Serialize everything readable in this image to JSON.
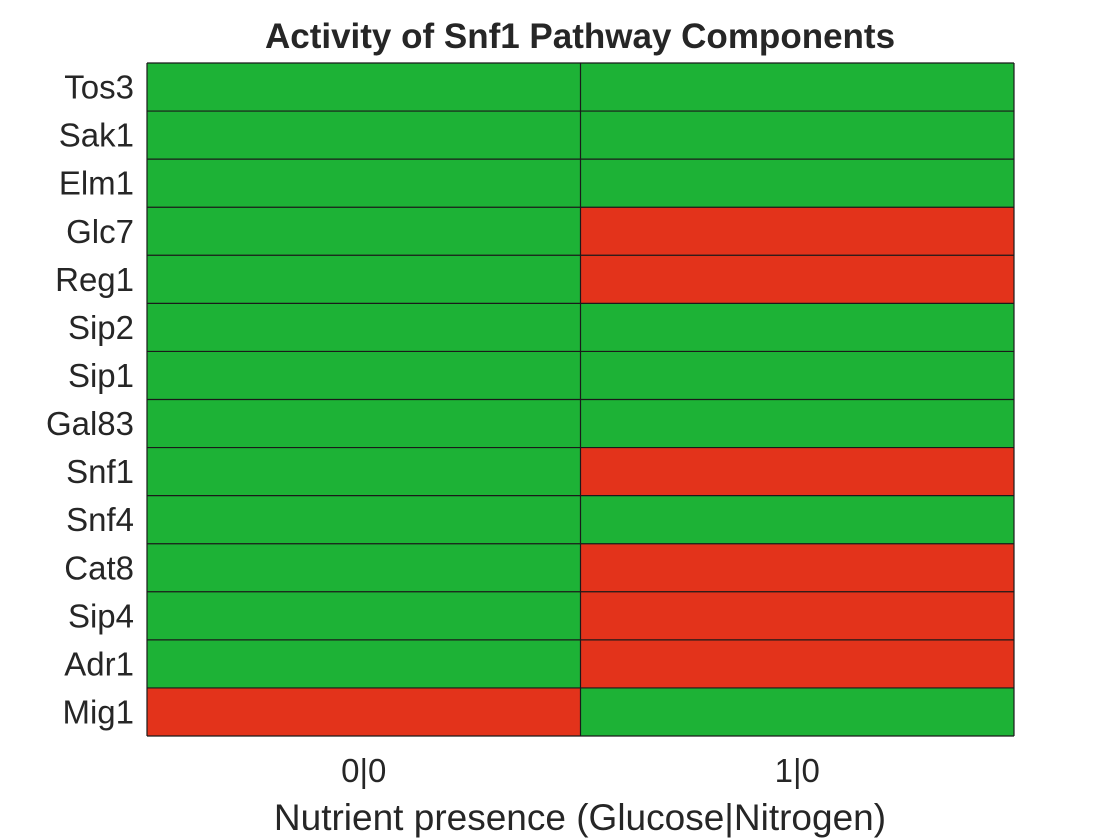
{
  "chart_data": {
    "type": "heatmap",
    "title": "Activity of Snf1 Pathway Components",
    "xlabel": "Nutrient presence (Glucose|Nitrogen)",
    "ylabel": "",
    "x_categories": [
      "0|0",
      "1|0"
    ],
    "y_categories": [
      "Tos3",
      "Sak1",
      "Elm1",
      "Glc7",
      "Reg1",
      "Sip2",
      "Sip1",
      "Gal83",
      "Snf1",
      "Snf4",
      "Cat8",
      "Sip4",
      "Adr1",
      "Mig1"
    ],
    "values": [
      [
        1,
        1
      ],
      [
        1,
        1
      ],
      [
        1,
        1
      ],
      [
        1,
        0
      ],
      [
        1,
        0
      ],
      [
        1,
        1
      ],
      [
        1,
        1
      ],
      [
        1,
        1
      ],
      [
        1,
        0
      ],
      [
        1,
        1
      ],
      [
        1,
        0
      ],
      [
        1,
        0
      ],
      [
        1,
        0
      ],
      [
        0,
        1
      ]
    ],
    "colors": {
      "1": "#1db236",
      "0": "#e3331b",
      "grid": "#1a1a1a",
      "text": "#262626"
    },
    "grid": true,
    "legend": "none"
  }
}
